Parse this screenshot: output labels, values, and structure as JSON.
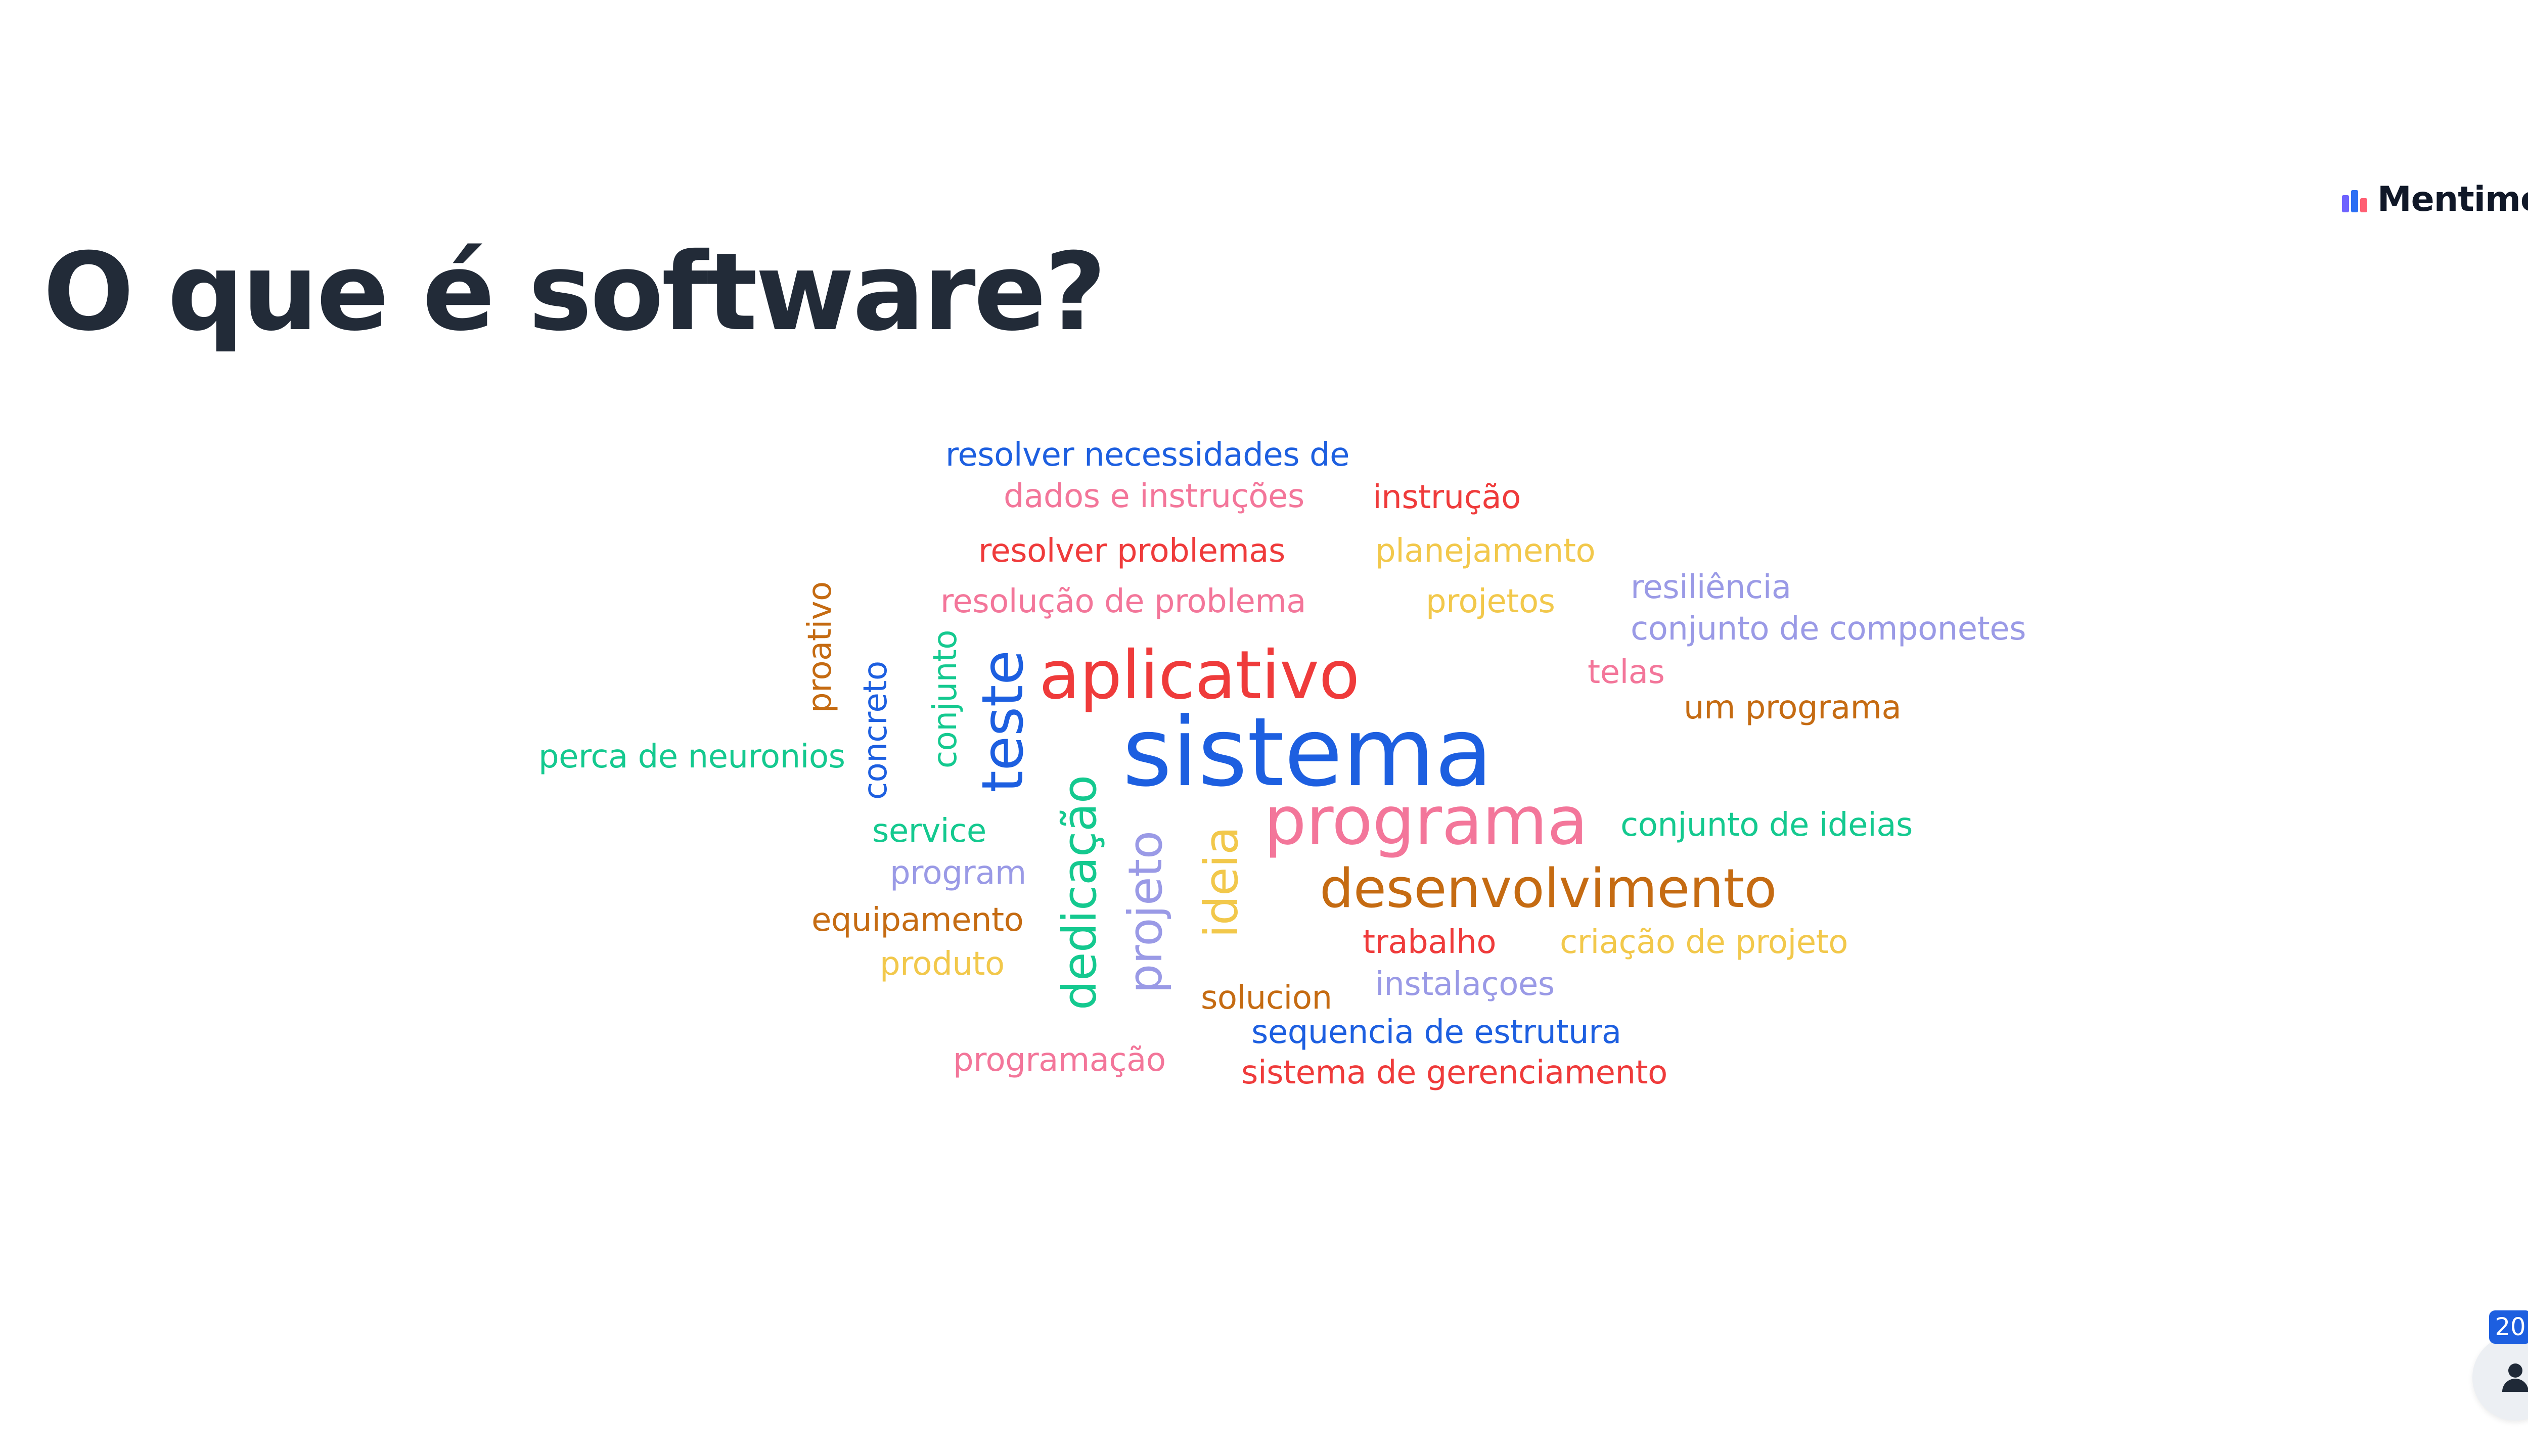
{
  "slide": {
    "title": "O que é software?"
  },
  "brand": {
    "name": "Mentimeter",
    "icon": "mentimeter-logo-icon",
    "logo_colors": [
      "#6e63ff",
      "#2b6ff4",
      "#ff5f73"
    ]
  },
  "colors": {
    "title": "#222b38",
    "blue": "#1d5fe0",
    "pink": "#f3769a",
    "red": "#ef3b3b",
    "yellow": "#f2c84b",
    "lavender": "#9a9ae6",
    "orange": "#c56b12",
    "green": "#14c98f"
  },
  "word_cloud": {
    "words": [
      {
        "text": "resolver necessidades de",
        "color": "#1d5fe0"
      },
      {
        "text": "dados e instruções",
        "color": "#f3769a"
      },
      {
        "text": "instrução",
        "color": "#ef3b3b"
      },
      {
        "text": "resolver problemas",
        "color": "#ef3b3b"
      },
      {
        "text": "planejamento",
        "color": "#f2c84b"
      },
      {
        "text": "resiliência",
        "color": "#9a9ae6"
      },
      {
        "text": "resolução de problema",
        "color": "#f3769a"
      },
      {
        "text": "projetos",
        "color": "#f2c84b"
      },
      {
        "text": "conjunto de componetes",
        "color": "#9a9ae6"
      },
      {
        "text": "proativo",
        "color": "#c56b12"
      },
      {
        "text": "concreto",
        "color": "#1d5fe0"
      },
      {
        "text": "conjunto",
        "color": "#14c98f"
      },
      {
        "text": "teste",
        "color": "#1d5fe0"
      },
      {
        "text": "aplicativo",
        "color": "#ef3b3b"
      },
      {
        "text": "telas",
        "color": "#f3769a"
      },
      {
        "text": "um programa",
        "color": "#c56b12"
      },
      {
        "text": "perca de neuronios",
        "color": "#14c98f"
      },
      {
        "text": "sistema",
        "color": "#1d5fe0"
      },
      {
        "text": "dedicação",
        "color": "#14c98f"
      },
      {
        "text": "programa",
        "color": "#f3769a"
      },
      {
        "text": "conjunto de ideias",
        "color": "#14c98f"
      },
      {
        "text": "service",
        "color": "#14c98f"
      },
      {
        "text": "projeto",
        "color": "#9a9ae6"
      },
      {
        "text": "ideia",
        "color": "#f2c84b"
      },
      {
        "text": "program",
        "color": "#9a9ae6"
      },
      {
        "text": "desenvolvimento",
        "color": "#c56b12"
      },
      {
        "text": "equipamento",
        "color": "#c56b12"
      },
      {
        "text": "trabalho",
        "color": "#ef3b3b"
      },
      {
        "text": "criação de projeto",
        "color": "#f2c84b"
      },
      {
        "text": "produto",
        "color": "#f2c84b"
      },
      {
        "text": "instalaçoes",
        "color": "#9a9ae6"
      },
      {
        "text": "solucion",
        "color": "#c56b12"
      },
      {
        "text": "sequencia de estrutura",
        "color": "#1d5fe0"
      },
      {
        "text": "programação",
        "color": "#f3769a"
      },
      {
        "text": "sistema de gerenciamento",
        "color": "#ef3b3b"
      }
    ]
  },
  "participants": {
    "count": "20",
    "icon": "person-icon"
  }
}
